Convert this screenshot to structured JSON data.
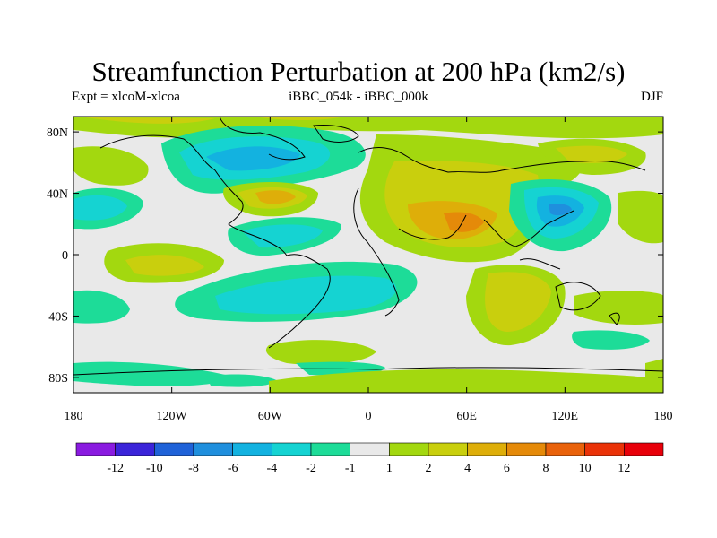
{
  "header": {
    "title": "Streamfunction Perturbation at 200 hPa (km2/s)",
    "left": "Expt = xlcoM-xlcoa",
    "center": "iBBC_054k - iBBC_000k",
    "right": "DJF"
  },
  "axes": {
    "lat_labels": [
      "80N",
      "40N",
      "0",
      "40S",
      "80S"
    ],
    "lat_values": [
      80,
      40,
      0,
      -40,
      -80
    ],
    "lon_labels": [
      "180",
      "120W",
      "60W",
      "0",
      "60E",
      "120E",
      "180"
    ],
    "lon_values": [
      -180,
      -120,
      -60,
      0,
      60,
      120,
      180
    ],
    "lon_range": [
      -180,
      180
    ],
    "lat_range": [
      -90,
      90
    ]
  },
  "colorbar": {
    "labels": [
      "-12",
      "-10",
      "-8",
      "-6",
      "-4",
      "-2",
      "-1",
      "1",
      "2",
      "4",
      "6",
      "8",
      "10",
      "12"
    ],
    "colors": [
      "#8a1be0",
      "#3b24d9",
      "#1f62d8",
      "#1f8fdd",
      "#13b2e0",
      "#15d3d2",
      "#1ddc98",
      "#e9e9e9",
      "#a3d80f",
      "#c9cf0d",
      "#deae09",
      "#e58a09",
      "#e9620b",
      "#ea3208",
      "#e8000a"
    ]
  },
  "map_features": [
    {
      "name": "arctic-positive",
      "level": "2",
      "lon": -120,
      "lat": 80
    },
    {
      "name": "north-atlantic-trough",
      "level": "-4",
      "lon": -70,
      "lat": 60
    },
    {
      "name": "us-east-ridge",
      "level": "6",
      "lon": -70,
      "lat": 38
    },
    {
      "name": "caribbean-trough",
      "level": "-4",
      "lon": -65,
      "lat": 18
    },
    {
      "name": "asia-ridge",
      "level": "6",
      "lon": 60,
      "lat": 22
    },
    {
      "name": "east-asia-trough",
      "level": "-4",
      "lon": 115,
      "lat": 30
    },
    {
      "name": "pacific-trough",
      "level": "-4",
      "lon": -175,
      "lat": 30
    },
    {
      "name": "south-atlantic-trough",
      "level": "-2",
      "lon": -40,
      "lat": -20
    },
    {
      "name": "indian-ocean-positive",
      "level": "4",
      "lon": 90,
      "lat": -25
    },
    {
      "name": "antarctic-negative",
      "level": "-2",
      "lon": -140,
      "lat": -78
    }
  ]
}
